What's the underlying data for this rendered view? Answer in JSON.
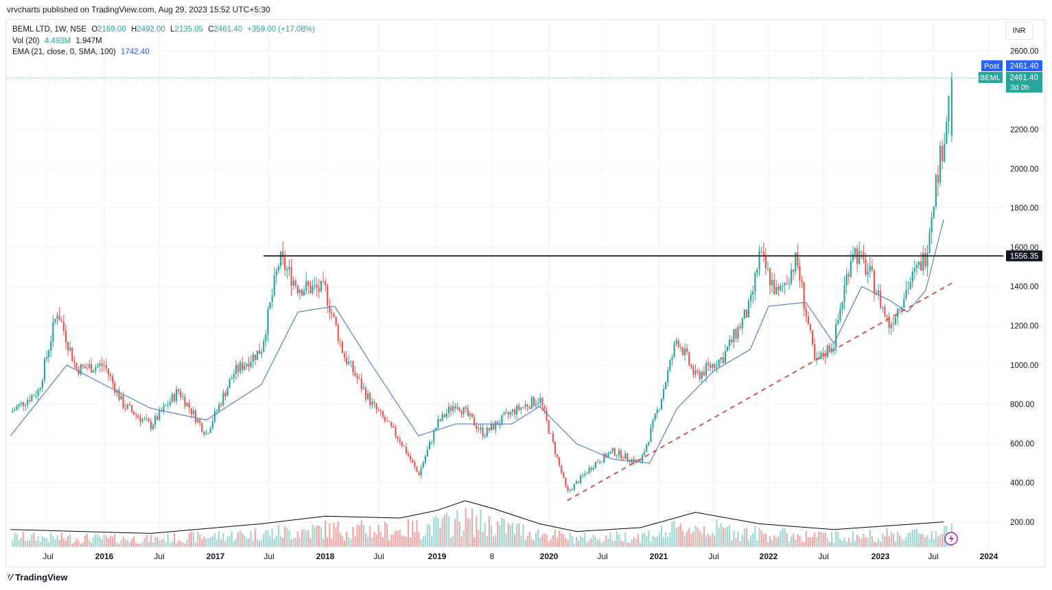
{
  "header": {
    "publisher_line": "vrvcharts published on TradingView.com, Aug 29, 2023 15:52 UTC+5:30"
  },
  "legend": {
    "symbol_line": "BEML LTD, 1W, NSE",
    "o_label": "O",
    "o_value": "2169.00",
    "h_label": "H",
    "h_value": "2492.00",
    "l_label": "L",
    "l_value": "2135.05",
    "c_label": "C",
    "c_value": "2461.40",
    "change": "+359.00 (+17.08%)",
    "vol_label": "Vol (20)",
    "vol_value": "4.493M",
    "vol_ma_value": "1.947M",
    "ema_label": "EMA (21, close, 0, SMA, 100)",
    "ema_value": "1742.40"
  },
  "currency": "INR",
  "footer": {
    "brand": "TradingView",
    "icon": "tradingview-logo-icon"
  },
  "colors": {
    "up": "#26a69a",
    "down": "#ef5350",
    "ema": "#5b7ec4",
    "vol_ma": "#000000",
    "trendline": "#d9534f",
    "post_badge": "#2962ff",
    "level_badge": "#131722"
  },
  "chart_data": {
    "type": "candlestick",
    "title": "BEML LTD, 1W, NSE",
    "y_axis": {
      "ticks": [
        "2600.00",
        "2200.00",
        "2000.00",
        "1800.00",
        "1600.00",
        "1400.00",
        "1200.00",
        "1000.00",
        "800.00",
        "600.00",
        "400.00",
        "200.00"
      ],
      "range": [
        100,
        2700
      ]
    },
    "x_axis": {
      "ticks": [
        "Jul",
        "2016",
        "Jul",
        "2017",
        "Jul",
        "2018",
        "Jul",
        "2019",
        "8",
        "2020",
        "Jul",
        "2021",
        "Jul",
        "2022",
        "Jul",
        "2023",
        "Jul",
        "2024"
      ]
    },
    "price_path": [
      [
        "2015-03",
        760
      ],
      [
        "2015-06",
        870
      ],
      [
        "2015-08",
        1280
      ],
      [
        "2015-10",
        980
      ],
      [
        "2016-01",
        1000
      ],
      [
        "2016-03",
        800
      ],
      [
        "2016-06",
        690
      ],
      [
        "2016-09",
        870
      ],
      [
        "2016-12",
        650
      ],
      [
        "2017-03",
        960
      ],
      [
        "2017-06",
        1080
      ],
      [
        "2017-08",
        1540
      ],
      [
        "2017-10",
        1400
      ],
      [
        "2018-01",
        1380
      ],
      [
        "2018-03",
        1050
      ],
      [
        "2018-06",
        800
      ],
      [
        "2018-09",
        620
      ],
      [
        "2018-11",
        440
      ],
      [
        "2019-01",
        700
      ],
      [
        "2019-03",
        810
      ],
      [
        "2019-06",
        650
      ],
      [
        "2019-09",
        760
      ],
      [
        "2019-12",
        830
      ],
      [
        "2020-03",
        350
      ],
      [
        "2020-06",
        500
      ],
      [
        "2020-08",
        560
      ],
      [
        "2020-11",
        500
      ],
      [
        "2021-01",
        790
      ],
      [
        "2021-03",
        1140
      ],
      [
        "2021-05",
        940
      ],
      [
        "2021-08",
        1040
      ],
      [
        "2021-11",
        1300
      ],
      [
        "2021-12",
        1560
      ],
      [
        "2022-02",
        1350
      ],
      [
        "2022-04",
        1540
      ],
      [
        "2022-06",
        1000
      ],
      [
        "2022-08",
        1120
      ],
      [
        "2022-10",
        1600
      ],
      [
        "2022-12",
        1450
      ],
      [
        "2023-02",
        1200
      ],
      [
        "2023-04",
        1400
      ],
      [
        "2023-06",
        1560
      ],
      [
        "2023-07",
        1900
      ],
      [
        "2023-08",
        2150
      ],
      [
        "2023-08-28",
        2461.4
      ]
    ],
    "ema_21": [
      [
        "2015-03",
        640
      ],
      [
        "2015-06",
        820
      ],
      [
        "2015-09",
        1000
      ],
      [
        "2016-01",
        900
      ],
      [
        "2016-06",
        780
      ],
      [
        "2016-12",
        720
      ],
      [
        "2017-06",
        900
      ],
      [
        "2017-10",
        1270
      ],
      [
        "2018-02",
        1300
      ],
      [
        "2018-06",
        1000
      ],
      [
        "2018-11",
        640
      ],
      [
        "2019-03",
        700
      ],
      [
        "2019-09",
        700
      ],
      [
        "2019-12",
        790
      ],
      [
        "2020-04",
        600
      ],
      [
        "2020-08",
        520
      ],
      [
        "2020-12",
        500
      ],
      [
        "2021-03",
        780
      ],
      [
        "2021-07",
        970
      ],
      [
        "2021-11",
        1080
      ],
      [
        "2022-01",
        1300
      ],
      [
        "2022-05",
        1320
      ],
      [
        "2022-08",
        1110
      ],
      [
        "2022-11",
        1400
      ],
      [
        "2023-02",
        1330
      ],
      [
        "2023-04",
        1270
      ],
      [
        "2023-06",
        1380
      ],
      [
        "2023-08",
        1742.4
      ]
    ],
    "volume_ma": [
      [
        "2015-03",
        90
      ],
      [
        "2016-06",
        70
      ],
      [
        "2017-06",
        120
      ],
      [
        "2018-01",
        160
      ],
      [
        "2018-09",
        150
      ],
      [
        "2019-01",
        190
      ],
      [
        "2019-04",
        240
      ],
      [
        "2019-07",
        200
      ],
      [
        "2019-12",
        120
      ],
      [
        "2020-04",
        80
      ],
      [
        "2020-11",
        100
      ],
      [
        "2021-05",
        180
      ],
      [
        "2021-12",
        120
      ],
      [
        "2022-08",
        90
      ],
      [
        "2023-08",
        130
      ]
    ],
    "horizontal_level": {
      "value": 1556.35,
      "label": "1556.35"
    },
    "trendline": {
      "from": [
        "2020-03",
        310
      ],
      "to": [
        "2023-09",
        1420
      ]
    },
    "last_price": {
      "symbol": "BEML",
      "value": "2461.40",
      "post_label": "Post",
      "post_value": "2461.40",
      "countdown": "3d 0h"
    },
    "grid": true
  }
}
